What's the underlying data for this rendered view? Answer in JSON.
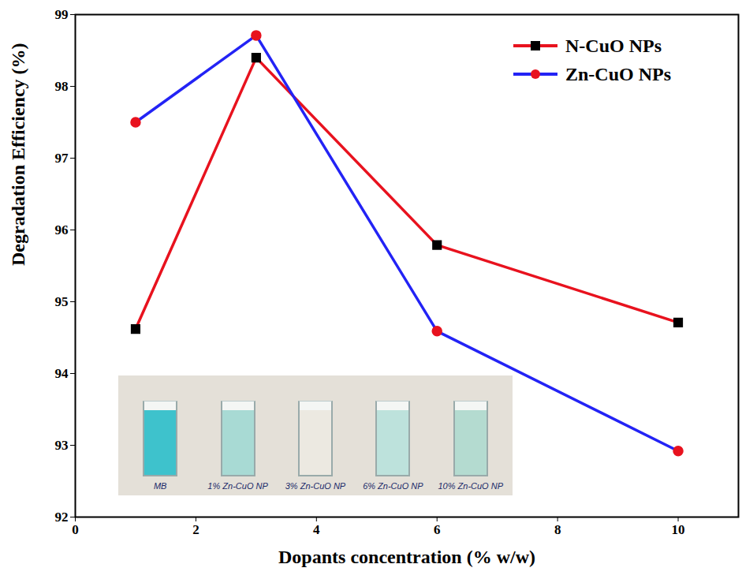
{
  "chart_data": {
    "type": "line",
    "xlabel": "Dopants concentration (% w/w)",
    "ylabel": "Degradation Efficiency (%)",
    "x": [
      1,
      3,
      6,
      10
    ],
    "series": [
      {
        "name": "N-CuO NPs",
        "color": "#e8121e",
        "marker": "square",
        "values": [
          94.62,
          98.4,
          95.79,
          94.71
        ]
      },
      {
        "name": "Zn-CuO NPs",
        "color": "#2323f5",
        "marker": "circle",
        "values": [
          97.5,
          98.71,
          94.59,
          92.92
        ]
      }
    ],
    "xlim": [
      0,
      11
    ],
    "ylim": [
      92,
      99
    ],
    "xticks": [
      0,
      2,
      4,
      6,
      8,
      10
    ],
    "yticks": [
      92,
      93,
      94,
      95,
      96,
      97,
      98,
      99
    ],
    "legend": "top-right",
    "annotations": [
      "MB",
      "1% Zn-CuO NP",
      "3% Zn-CuO NP",
      "6% Zn-CuO NP",
      "10% Zn-CuO NP"
    ]
  }
}
